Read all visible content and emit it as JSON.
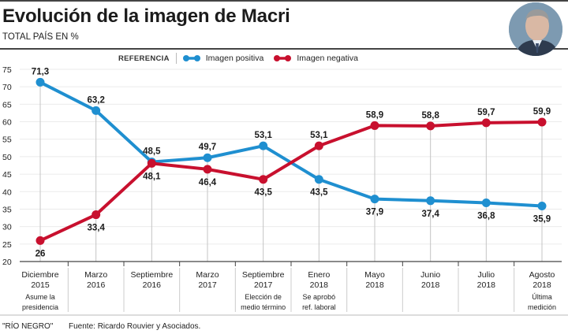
{
  "header": {
    "title": "Evolución de la imagen de Macri",
    "subtitle": "TOTAL PAÍS EN %"
  },
  "photo": {
    "icon": "portrait-photo",
    "alt": "Mauricio Macri"
  },
  "legend": {
    "label": "REFERENCIA",
    "items": [
      {
        "name": "Imagen positiva",
        "color": "#1f8fd0"
      },
      {
        "name": "Imagen negativa",
        "color": "#c8102e"
      }
    ]
  },
  "footer": {
    "credit": "\"RÍO NEGRO\"",
    "source": "Fuente: Ricardo Rouvier y Asociados."
  },
  "chart_data": {
    "type": "line",
    "title": "Evolución de la imagen de Macri",
    "subtitle": "TOTAL PAÍS EN %",
    "xlabel": "",
    "ylabel": "%",
    "ylim": [
      20,
      75
    ],
    "yticks": [
      20,
      25,
      30,
      35,
      40,
      45,
      50,
      55,
      60,
      65,
      70,
      75
    ],
    "grid": true,
    "legend_position": "top-right",
    "categories": [
      {
        "month": "Diciembre",
        "year": "2015",
        "note": [
          "Asume la",
          "presidencia"
        ]
      },
      {
        "month": "Marzo",
        "year": "2016",
        "note": []
      },
      {
        "month": "Septiembre",
        "year": "2016",
        "note": []
      },
      {
        "month": "Marzo",
        "year": "2017",
        "note": []
      },
      {
        "month": "Septiembre",
        "year": "2017",
        "note": [
          "Elección de",
          "medio término"
        ]
      },
      {
        "month": "Enero",
        "year": "2018",
        "note": [
          "Se aprobó",
          "ref. laboral"
        ]
      },
      {
        "month": "Mayo",
        "year": "2018",
        "note": []
      },
      {
        "month": "Junio",
        "year": "2018",
        "note": []
      },
      {
        "month": "Julio",
        "year": "2018",
        "note": []
      },
      {
        "month": "Agosto",
        "year": "2018",
        "note": [
          "Última",
          "medición"
        ]
      }
    ],
    "series": [
      {
        "name": "Imagen positiva",
        "color": "#1f8fd0",
        "values": [
          71.3,
          63.2,
          48.5,
          49.7,
          53.1,
          43.5,
          37.9,
          37.4,
          36.8,
          35.9
        ],
        "labels": [
          "71,3",
          "63,2",
          "48,5",
          "49,7",
          "53,1",
          "43,5",
          "37,9",
          "37,4",
          "36,8",
          "35,9"
        ]
      },
      {
        "name": "Imagen negativa",
        "color": "#c8102e",
        "values": [
          26,
          33.4,
          48.1,
          46.4,
          43.5,
          53.1,
          58.9,
          58.8,
          59.7,
          59.9
        ],
        "labels": [
          "26",
          "33,4",
          "48,1",
          "46,4",
          "43,5",
          "53,1",
          "58,9",
          "58,8",
          "59,7",
          "59,9"
        ]
      }
    ]
  }
}
